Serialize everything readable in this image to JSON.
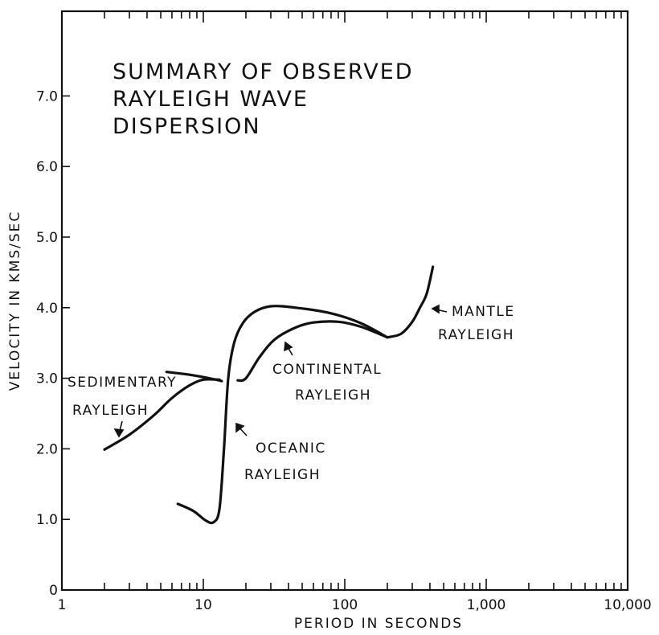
{
  "chart_data": {
    "type": "line",
    "title_lines": [
      "SUMMARY  OF  OBSERVED",
      "RAYLEIGH  WAVE",
      "DISPERSION"
    ],
    "xlabel": "PERIOD IN SECONDS",
    "ylabel": "VELOCITY IN KMS/SEC",
    "x_scale": "log",
    "xlim": [
      1,
      10000
    ],
    "ylim": [
      0,
      8.2
    ],
    "x_ticks": [
      {
        "value": 1,
        "label": "1"
      },
      {
        "value": 10,
        "label": "10"
      },
      {
        "value": 100,
        "label": "100"
      },
      {
        "value": 1000,
        "label": "1,000"
      },
      {
        "value": 10000,
        "label": "10,000"
      }
    ],
    "y_ticks": [
      {
        "value": 0,
        "label": "0"
      },
      {
        "value": 1.0,
        "label": "1.0"
      },
      {
        "value": 2.0,
        "label": "2.0"
      },
      {
        "value": 3.0,
        "label": "3.0"
      },
      {
        "value": 4.0,
        "label": "4.0"
      },
      {
        "value": 5.0,
        "label": "5.0"
      },
      {
        "value": 6.0,
        "label": "6.0"
      },
      {
        "value": 7.0,
        "label": "7.0"
      }
    ],
    "grid": false,
    "series": [
      {
        "name": "SEDIMENTARY RAYLEIGH",
        "label_lines": [
          "SEDIMENTARY",
          "RAYLEIGH"
        ],
        "points": [
          [
            2.0,
            1.99
          ],
          [
            3.0,
            2.2
          ],
          [
            4.5,
            2.48
          ],
          [
            6.0,
            2.72
          ],
          [
            8.0,
            2.9
          ],
          [
            10.0,
            2.98
          ],
          [
            13.0,
            2.98
          ]
        ],
        "extra_segment": [
          [
            5.5,
            3.09
          ],
          [
            8.0,
            3.05
          ],
          [
            11.0,
            3.0
          ],
          [
            13.5,
            2.96
          ]
        ]
      },
      {
        "name": "OCEANIC RAYLEIGH",
        "label_lines": [
          "OCEANIC",
          "RAYLEIGH"
        ],
        "points": [
          [
            6.6,
            1.22
          ],
          [
            8.5,
            1.12
          ],
          [
            10.3,
            0.99
          ],
          [
            11.8,
            0.96
          ],
          [
            13.0,
            1.15
          ],
          [
            14.0,
            2.0
          ],
          [
            15.0,
            3.0
          ],
          [
            16.5,
            3.5
          ],
          [
            19.0,
            3.78
          ],
          [
            23.0,
            3.94
          ],
          [
            30.0,
            4.02
          ],
          [
            45.0,
            4.0
          ],
          [
            80.0,
            3.92
          ],
          [
            130.0,
            3.78
          ],
          [
            200.0,
            3.58
          ]
        ]
      },
      {
        "name": "CONTINENTAL RAYLEIGH",
        "label_lines": [
          "CONTINENTAL",
          "RAYLEIGH"
        ],
        "points": [
          [
            17.5,
            2.97
          ],
          [
            20.0,
            3.0
          ],
          [
            25.0,
            3.3
          ],
          [
            32.0,
            3.55
          ],
          [
            45.0,
            3.72
          ],
          [
            60.0,
            3.79
          ],
          [
            90.0,
            3.8
          ],
          [
            130.0,
            3.73
          ],
          [
            200.0,
            3.58
          ]
        ]
      },
      {
        "name": "MANTLE RAYLEIGH",
        "label_lines": [
          "MANTLE",
          "RAYLEIGH"
        ],
        "points": [
          [
            200.0,
            3.58
          ],
          [
            250.0,
            3.63
          ],
          [
            300.0,
            3.8
          ],
          [
            340.0,
            4.0
          ],
          [
            380.0,
            4.2
          ],
          [
            420.0,
            4.58
          ]
        ]
      }
    ]
  }
}
